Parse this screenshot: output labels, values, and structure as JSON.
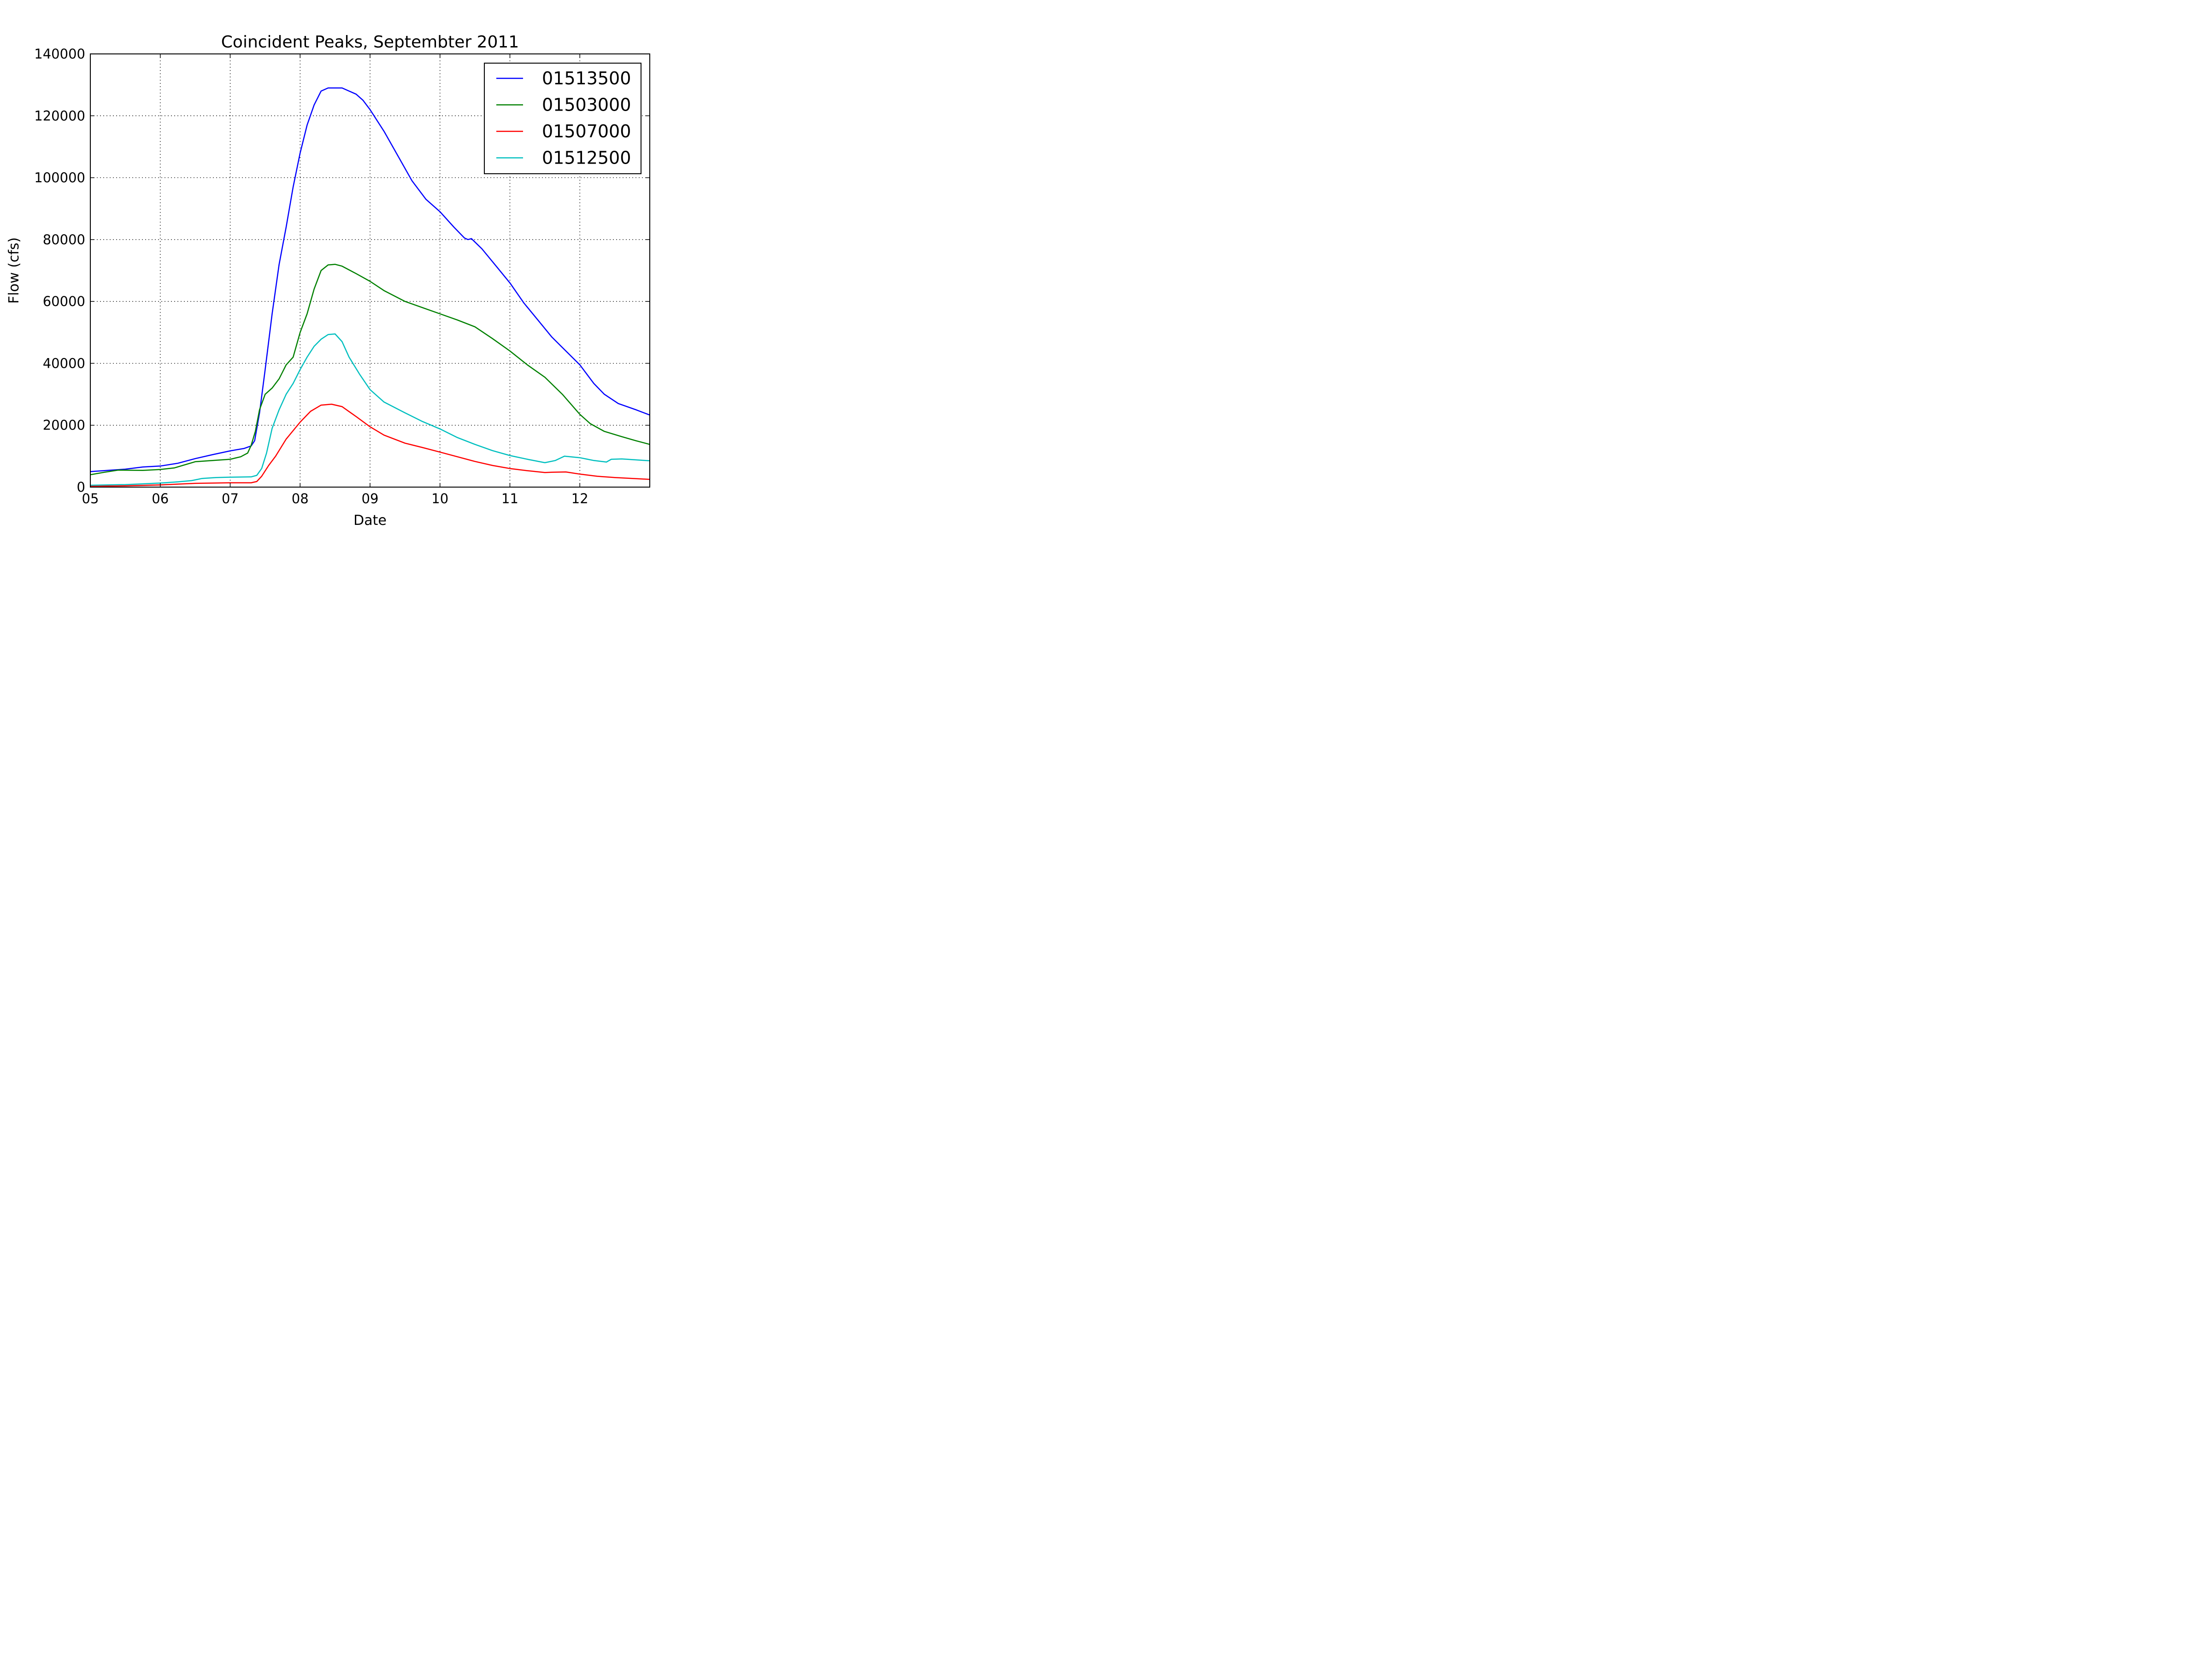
{
  "chart_data": {
    "type": "line",
    "title": "Coincident Peaks, Septembter 2011",
    "xlabel": "Date",
    "ylabel": "Flow (cfs)",
    "xlim": [
      5,
      13
    ],
    "ylim": [
      0,
      140000
    ],
    "x_ticks": [
      5,
      6,
      7,
      8,
      9,
      10,
      11,
      12
    ],
    "x_tick_labels": [
      "05",
      "06",
      "07",
      "08",
      "09",
      "10",
      "11",
      "12"
    ],
    "y_ticks": [
      0,
      20000,
      40000,
      60000,
      80000,
      100000,
      120000,
      140000
    ],
    "y_tick_labels": [
      "0",
      "20000",
      "40000",
      "60000",
      "80000",
      "100000",
      "120000",
      "140000"
    ],
    "grid": true,
    "legend_position": "top-right",
    "series": [
      {
        "name": "01513500",
        "color": "#0000ff",
        "points": [
          [
            5.0,
            5000
          ],
          [
            5.5,
            5800
          ],
          [
            5.75,
            6500
          ],
          [
            6.0,
            6800
          ],
          [
            6.25,
            7700
          ],
          [
            6.5,
            9200
          ],
          [
            6.75,
            10500
          ],
          [
            7.0,
            11700
          ],
          [
            7.2,
            12500
          ],
          [
            7.3,
            13300
          ],
          [
            7.35,
            15000
          ],
          [
            7.42,
            24000
          ],
          [
            7.5,
            38000
          ],
          [
            7.6,
            56000
          ],
          [
            7.7,
            72000
          ],
          [
            7.8,
            84000
          ],
          [
            7.9,
            97000
          ],
          [
            8.0,
            108000
          ],
          [
            8.1,
            117000
          ],
          [
            8.2,
            123500
          ],
          [
            8.3,
            128000
          ],
          [
            8.4,
            129000
          ],
          [
            8.6,
            129000
          ],
          [
            8.7,
            128000
          ],
          [
            8.8,
            127000
          ],
          [
            8.9,
            125000
          ],
          [
            9.0,
            122000
          ],
          [
            9.2,
            115000
          ],
          [
            9.4,
            107000
          ],
          [
            9.6,
            99000
          ],
          [
            9.8,
            93000
          ],
          [
            10.0,
            89000
          ],
          [
            10.2,
            84000
          ],
          [
            10.35,
            80500
          ],
          [
            10.4,
            80000
          ],
          [
            10.45,
            80300
          ],
          [
            10.6,
            77000
          ],
          [
            10.8,
            71500
          ],
          [
            11.0,
            66000
          ],
          [
            11.2,
            59500
          ],
          [
            11.4,
            54000
          ],
          [
            11.6,
            48500
          ],
          [
            11.8,
            44000
          ],
          [
            12.0,
            39500
          ],
          [
            12.2,
            33500
          ],
          [
            12.35,
            30000
          ],
          [
            12.55,
            27000
          ],
          [
            12.8,
            25000
          ],
          [
            13.0,
            23300
          ]
        ]
      },
      {
        "name": "01503000",
        "color": "#008000",
        "points": [
          [
            5.0,
            4000
          ],
          [
            5.2,
            4800
          ],
          [
            5.4,
            5500
          ],
          [
            5.75,
            5400
          ],
          [
            6.0,
            5700
          ],
          [
            6.2,
            6200
          ],
          [
            6.5,
            8200
          ],
          [
            6.75,
            8600
          ],
          [
            7.0,
            9000
          ],
          [
            7.15,
            9800
          ],
          [
            7.25,
            11000
          ],
          [
            7.3,
            13500
          ],
          [
            7.36,
            18000
          ],
          [
            7.42,
            25000
          ],
          [
            7.5,
            30000
          ],
          [
            7.6,
            32000
          ],
          [
            7.7,
            35000
          ],
          [
            7.8,
            39500
          ],
          [
            7.9,
            42000
          ],
          [
            8.0,
            50000
          ],
          [
            8.1,
            56000
          ],
          [
            8.2,
            64000
          ],
          [
            8.3,
            70000
          ],
          [
            8.4,
            71800
          ],
          [
            8.5,
            72000
          ],
          [
            8.6,
            71400
          ],
          [
            8.8,
            69000
          ],
          [
            9.0,
            66500
          ],
          [
            9.2,
            63500
          ],
          [
            9.5,
            60000
          ],
          [
            9.75,
            58000
          ],
          [
            10.0,
            56000
          ],
          [
            10.25,
            54000
          ],
          [
            10.5,
            51800
          ],
          [
            10.75,
            48000
          ],
          [
            11.0,
            44000
          ],
          [
            11.25,
            39500
          ],
          [
            11.5,
            35500
          ],
          [
            11.75,
            30000
          ],
          [
            12.0,
            23500
          ],
          [
            12.15,
            20500
          ],
          [
            12.35,
            18000
          ],
          [
            12.6,
            16300
          ],
          [
            12.8,
            15000
          ],
          [
            13.0,
            13800
          ]
        ]
      },
      {
        "name": "01507000",
        "color": "#ff0000",
        "points": [
          [
            5.0,
            300
          ],
          [
            5.5,
            400
          ],
          [
            6.0,
            700
          ],
          [
            6.5,
            1200
          ],
          [
            7.0,
            1400
          ],
          [
            7.3,
            1400
          ],
          [
            7.38,
            1800
          ],
          [
            7.45,
            3500
          ],
          [
            7.55,
            7000
          ],
          [
            7.65,
            10000
          ],
          [
            7.8,
            15500
          ],
          [
            8.0,
            21000
          ],
          [
            8.15,
            24500
          ],
          [
            8.3,
            26500
          ],
          [
            8.45,
            26800
          ],
          [
            8.6,
            26000
          ],
          [
            8.8,
            22800
          ],
          [
            9.0,
            19500
          ],
          [
            9.2,
            16800
          ],
          [
            9.5,
            14200
          ],
          [
            9.75,
            12800
          ],
          [
            10.0,
            11300
          ],
          [
            10.25,
            9800
          ],
          [
            10.5,
            8300
          ],
          [
            10.75,
            7000
          ],
          [
            11.0,
            6000
          ],
          [
            11.25,
            5300
          ],
          [
            11.5,
            4700
          ],
          [
            11.6,
            4800
          ],
          [
            11.8,
            4900
          ],
          [
            12.0,
            4200
          ],
          [
            12.25,
            3500
          ],
          [
            12.5,
            3100
          ],
          [
            12.75,
            2800
          ],
          [
            13.0,
            2500
          ]
        ]
      },
      {
        "name": "01512500",
        "color": "#00bfbf",
        "points": [
          [
            5.0,
            600
          ],
          [
            5.5,
            800
          ],
          [
            6.0,
            1300
          ],
          [
            6.25,
            1700
          ],
          [
            6.45,
            2100
          ],
          [
            6.6,
            2800
          ],
          [
            6.8,
            3100
          ],
          [
            7.0,
            3200
          ],
          [
            7.3,
            3300
          ],
          [
            7.38,
            3800
          ],
          [
            7.45,
            6000
          ],
          [
            7.52,
            11000
          ],
          [
            7.6,
            19000
          ],
          [
            7.7,
            25000
          ],
          [
            7.8,
            30000
          ],
          [
            7.9,
            33500
          ],
          [
            8.0,
            38000
          ],
          [
            8.1,
            42000
          ],
          [
            8.2,
            45500
          ],
          [
            8.3,
            47800
          ],
          [
            8.4,
            49300
          ],
          [
            8.5,
            49500
          ],
          [
            8.6,
            47000
          ],
          [
            8.7,
            42000
          ],
          [
            8.85,
            36500
          ],
          [
            9.0,
            31500
          ],
          [
            9.2,
            27500
          ],
          [
            9.5,
            24000
          ],
          [
            9.75,
            21200
          ],
          [
            10.0,
            18800
          ],
          [
            10.25,
            16000
          ],
          [
            10.5,
            13800
          ],
          [
            10.75,
            11800
          ],
          [
            11.0,
            10200
          ],
          [
            11.25,
            9000
          ],
          [
            11.5,
            7900
          ],
          [
            11.65,
            8600
          ],
          [
            11.78,
            10000
          ],
          [
            12.0,
            9500
          ],
          [
            12.2,
            8600
          ],
          [
            12.38,
            8100
          ],
          [
            12.45,
            9000
          ],
          [
            12.6,
            9100
          ],
          [
            12.8,
            8800
          ],
          [
            13.0,
            8500
          ]
        ]
      }
    ]
  }
}
